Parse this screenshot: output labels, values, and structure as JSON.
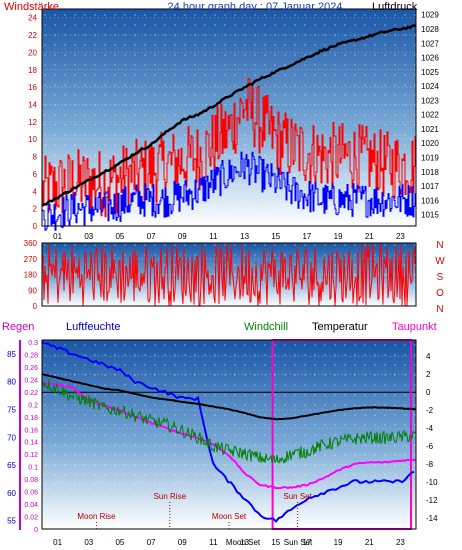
{
  "chart_data": [
    {
      "type": "line",
      "title": "24 hour graph day : 07 Januar 2024",
      "left_axis_label": "Windstärke",
      "right_axis_label": "Luftdruck",
      "left_ticks": [
        "0",
        "2",
        "4",
        "6",
        "8",
        "10",
        "12",
        "14",
        "16",
        "18",
        "20",
        "22",
        "24"
      ],
      "left_range": [
        0,
        25
      ],
      "right_ticks": [
        "1015",
        "1016",
        "1017",
        "1018",
        "1019",
        "1020",
        "1021",
        "1022",
        "1023",
        "1024",
        "1025",
        "1026",
        "1027",
        "1028",
        "1029"
      ],
      "right_range": [
        1014.2,
        1029.4
      ],
      "x_ticks": [
        "01",
        "03",
        "05",
        "07",
        "09",
        "11",
        "13",
        "15",
        "17",
        "19",
        "21",
        "23"
      ],
      "x_range_hours": [
        0,
        24
      ],
      "series": [
        {
          "role": "pressure",
          "color": "#000000",
          "x": [
            0,
            1,
            2,
            3,
            4,
            5,
            6,
            7,
            8,
            9,
            10,
            11,
            12,
            13,
            14,
            15,
            16,
            17,
            18,
            19,
            20,
            21,
            22,
            23,
            24
          ],
          "y": [
            1015.6,
            1016.2,
            1016.8,
            1017.4,
            1018.0,
            1018.6,
            1019.3,
            1019.9,
            1020.8,
            1021.6,
            1022.0,
            1022.6,
            1023.3,
            1023.9,
            1024.5,
            1025.0,
            1025.5,
            1026.0,
            1026.5,
            1026.9,
            1027.2,
            1027.5,
            1027.8,
            1028.0,
            1028.2
          ]
        },
        {
          "role": "wind_gust",
          "color": "#ff0000",
          "x": [
            0,
            2,
            4,
            6,
            8,
            10,
            12,
            13,
            14,
            15,
            16,
            18,
            20,
            22,
            24
          ],
          "y": [
            4,
            5,
            5,
            6,
            7,
            8,
            11,
            14,
            12,
            10,
            9,
            8,
            8,
            7,
            7
          ]
        },
        {
          "role": "wind_avg",
          "color": "#0000ff",
          "x": [
            0,
            2,
            4,
            6,
            8,
            10,
            12,
            13,
            14,
            15,
            16,
            18,
            20,
            22,
            24
          ],
          "y": [
            1,
            2,
            2,
            3,
            3,
            4,
            6,
            7,
            6,
            5,
            4,
            3,
            3,
            3,
            3
          ]
        }
      ]
    },
    {
      "type": "scatter",
      "left_ticks": [
        "0",
        "90",
        "180",
        "270",
        "360"
      ],
      "left_range": [
        0,
        360
      ],
      "right_labels": [
        "N",
        "W",
        "S",
        "O",
        "N"
      ],
      "x_range_hours": [
        0,
        24
      ],
      "series": [
        {
          "role": "wind_direction",
          "color": "#ff0000"
        }
      ]
    },
    {
      "type": "line",
      "labels": {
        "rain": "Regen",
        "humidity": "Luftfeuchte",
        "windchill": "Windchill",
        "temperature": "Temperatur",
        "dewpoint": "Taupunkt",
        "sun_rise": "Sun Rise",
        "sun_set": "Sun Set",
        "moon_rise": "Moon Rise",
        "moon_set": "Moon Set"
      },
      "humidity_ticks": [
        "55",
        "60",
        "65",
        "70",
        "75",
        "80",
        "85"
      ],
      "humidity_range": [
        53.5,
        87.5
      ],
      "rain_ticks": [
        "0",
        "0.02",
        "0.04",
        "0.06",
        "0.08",
        "0.1",
        "0.12",
        "0.14",
        "0.16",
        "0.18",
        "0.2",
        "0.22",
        "0.24",
        "0.26",
        "0.28",
        "0.3"
      ],
      "rain_range": [
        0,
        0.3
      ],
      "temp_ticks": [
        "4",
        "2",
        "0",
        "-2",
        "-4",
        "-6",
        "-8",
        "-10",
        "-12",
        "-14"
      ],
      "temp_range": [
        -15.2,
        5.8
      ],
      "x_ticks": [
        "01",
        "03",
        "05",
        "07",
        "09",
        "11",
        "13",
        "15",
        "17",
        "19",
        "21",
        "23"
      ],
      "x_range_hours": [
        0,
        24
      ],
      "events": {
        "sun_rise": 8.2,
        "sun_set": 16.4,
        "moon_rise": 3.5,
        "moon_set": 12.0
      },
      "series": [
        {
          "role": "temperature",
          "color": "#000000",
          "x": [
            0,
            1,
            2,
            3,
            4,
            5,
            6,
            7,
            8,
            9,
            10,
            11,
            12,
            13,
            14,
            15,
            16,
            17,
            18,
            19,
            20,
            21,
            22,
            23,
            24
          ],
          "y": [
            2.0,
            1.6,
            1.2,
            0.8,
            0.4,
            0.2,
            -0.2,
            -0.6,
            -0.8,
            -1.1,
            -1.3,
            -1.6,
            -1.9,
            -2.3,
            -2.8,
            -3.0,
            -2.9,
            -2.6,
            -2.3,
            -2.0,
            -1.8,
            -1.7,
            -1.7,
            -1.8,
            -1.9
          ]
        },
        {
          "role": "windchill",
          "color": "#008000",
          "x": [
            0,
            1,
            2,
            3,
            4,
            5,
            6,
            7,
            8,
            9,
            10,
            11,
            12,
            13,
            14,
            15,
            16,
            17,
            18,
            19,
            20,
            21,
            22,
            23,
            24
          ],
          "y": [
            1.2,
            0.4,
            -0.5,
            -1.0,
            -1.8,
            -2.0,
            -2.6,
            -3.2,
            -3.6,
            -4.3,
            -5.0,
            -6.0,
            -6.5,
            -6.8,
            -7.3,
            -7.6,
            -6.9,
            -6.6,
            -5.9,
            -5.5,
            -5.2,
            -5.0,
            -5.1,
            -5.0,
            -4.8
          ]
        },
        {
          "role": "dewpoint",
          "color": "#ff00ff",
          "x": [
            0,
            1,
            2,
            3,
            4,
            5,
            6,
            7,
            8,
            9,
            10,
            11,
            12,
            13,
            14,
            15,
            16,
            17,
            18,
            19,
            20,
            21,
            22,
            23,
            24
          ],
          "y": [
            1.0,
            0.8,
            0.5,
            -0.9,
            -1.5,
            -2.0,
            -2.8,
            -3.4,
            -4.0,
            -4.6,
            -5.1,
            -5.8,
            -7.0,
            -9.0,
            -10.3,
            -10.6,
            -10.6,
            -10.3,
            -9.6,
            -8.7,
            -8.0,
            -7.8,
            -7.8,
            -7.6,
            -7.5
          ]
        },
        {
          "role": "humidity",
          "color": "#0000ff",
          "x": [
            0,
            1,
            2,
            3,
            4,
            5,
            6,
            7,
            8,
            9,
            10,
            11,
            12,
            13,
            14,
            15,
            16,
            17,
            18,
            19,
            20,
            21,
            22,
            23,
            24
          ],
          "y": [
            87,
            86,
            85,
            84,
            83,
            82,
            80,
            79,
            78,
            77,
            77,
            65,
            62,
            59,
            56,
            55,
            57,
            59,
            60,
            61,
            62,
            62,
            62,
            62,
            64
          ]
        }
      ]
    }
  ]
}
